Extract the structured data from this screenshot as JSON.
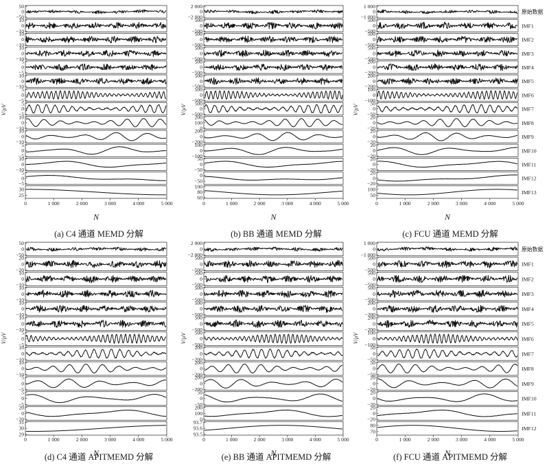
{
  "figure": {
    "x_ticks": [
      "0",
      "1 000",
      "2 000",
      "3 000",
      "4 000",
      "5 000"
    ],
    "x_axis_label": "N",
    "y_axis_label": "V/μV"
  },
  "chart_data": [
    {
      "type": "line",
      "caption": "(a) C4 通道 MEMD 分解",
      "xlabel": "N",
      "ylabel": "V/μV",
      "xlim": [
        0,
        5000
      ],
      "series": [
        {
          "yticks": [
            "50",
            "0",
            "−50"
          ]
        },
        {
          "yticks": [
            "10",
            "0",
            "−10"
          ]
        },
        {
          "yticks": [
            "10",
            "0",
            "−10"
          ]
        },
        {
          "yticks": [
            "10",
            "0",
            "−10"
          ]
        },
        {
          "yticks": [
            "5",
            "0",
            "−5"
          ]
        },
        {
          "yticks": [
            "10",
            "0",
            "−10"
          ]
        },
        {
          "yticks": [
            "5",
            "0",
            "−5"
          ]
        },
        {
          "yticks": [
            "5",
            "0",
            "−5"
          ]
        },
        {
          "yticks": [
            "10",
            "0",
            "−10"
          ]
        },
        {
          "yticks": [
            "10",
            "0",
            "−10"
          ]
        },
        {
          "yticks": [
            "5",
            "0",
            "−5"
          ]
        },
        {
          "yticks": [
            "10",
            "0",
            "−10"
          ]
        },
        {
          "yticks": [
            "5",
            "0",
            "−5"
          ]
        },
        {
          "yticks": [
            "30",
            "25"
          ]
        }
      ]
    },
    {
      "type": "line",
      "caption": "(b) BB 通道 MEMD 分解",
      "xlabel": "N",
      "xlim": [
        0,
        5000
      ],
      "series": [
        {
          "yticks": [
            "2 000",
            "0",
            "−2 000"
          ]
        },
        {
          "yticks": [
            "500",
            "0",
            "−500"
          ]
        },
        {
          "yticks": [
            "500",
            "0",
            "−500"
          ]
        },
        {
          "yticks": [
            "500",
            "0",
            "−500"
          ]
        },
        {
          "yticks": [
            "500",
            "0",
            "−500"
          ]
        },
        {
          "yticks": [
            "500",
            "0",
            "−500"
          ]
        },
        {
          "yticks": [
            "500",
            "0",
            "−500"
          ]
        },
        {
          "yticks": [
            "500",
            "0",
            "−500"
          ]
        },
        {
          "yticks": [
            "200",
            "100",
            "0"
          ]
        },
        {
          "yticks": [
            "200",
            "0",
            "−200"
          ]
        },
        {
          "yticks": [
            "100",
            "0",
            "−100"
          ]
        },
        {
          "yticks": [
            "50",
            "0",
            "−50"
          ]
        },
        {
          "yticks": [
            "0",
            "−50"
          ]
        },
        {
          "yticks": [
            "100",
            "80",
            "60"
          ]
        }
      ]
    },
    {
      "type": "line",
      "caption": "(c) FCU 通道 MEMD 分解",
      "xlabel": "N",
      "xlim": [
        0,
        5000
      ],
      "labels": [
        "原始数据",
        "IMF1",
        "IMF2",
        "IMF3",
        "IMF4",
        "IMF5",
        "IMF6",
        "IMF7",
        "IMF8",
        "IMF9",
        "IMF10",
        "IMF11",
        "IMF12",
        "IMF13"
      ],
      "series": [
        {
          "yticks": [
            "1 000",
            "0",
            "−1 000"
          ]
        },
        {
          "yticks": [
            "500",
            "0",
            "−500"
          ]
        },
        {
          "yticks": [
            "500",
            "0",
            "−500"
          ]
        },
        {
          "yticks": [
            "500",
            "0",
            "−500"
          ]
        },
        {
          "yticks": [
            "200",
            "0",
            "−200"
          ]
        },
        {
          "yticks": [
            "200",
            "0",
            "−200"
          ]
        },
        {
          "yticks": [
            "100",
            "0",
            "−100"
          ]
        },
        {
          "yticks": [
            "50",
            "0",
            "−50"
          ]
        },
        {
          "yticks": [
            "20",
            "0",
            "−20"
          ]
        },
        {
          "yticks": [
            "20",
            "0",
            "−20"
          ]
        },
        {
          "yticks": [
            "20",
            "0",
            "−20"
          ]
        },
        {
          "yticks": [
            "20",
            "0",
            "−20"
          ]
        },
        {
          "yticks": [
            "20",
            "0",
            "−20"
          ]
        },
        {
          "yticks": [
            "100",
            "50"
          ]
        }
      ]
    },
    {
      "type": "line",
      "caption": "(d) C4 通道 APITMEMD 分解",
      "xlabel": "N",
      "ylabel": "V/μV",
      "xlim": [
        0,
        5000
      ],
      "series": [
        {
          "yticks": [
            "50",
            "0",
            "−50"
          ]
        },
        {
          "yticks": [
            "20",
            "0",
            "−20"
          ]
        },
        {
          "yticks": [
            "10",
            "0",
            "−10"
          ]
        },
        {
          "yticks": [
            "10",
            "0",
            "−10"
          ]
        },
        {
          "yticks": [
            "10",
            "0",
            "−10"
          ]
        },
        {
          "yticks": [
            "10",
            "0",
            "−10"
          ]
        },
        {
          "yticks": [
            "5",
            "0",
            "−5"
          ]
        },
        {
          "yticks": [
            "10",
            "0",
            "−10"
          ]
        },
        {
          "yticks": [
            "10",
            "0",
            "−10"
          ]
        },
        {
          "yticks": [
            "5",
            "0",
            "−5"
          ]
        },
        {
          "yticks": [
            "5",
            "0",
            "−5"
          ]
        },
        {
          "yticks": [
            "20",
            "0",
            "−20"
          ]
        },
        {
          "yticks": [
            "31",
            "30",
            "29"
          ]
        }
      ]
    },
    {
      "type": "line",
      "caption": "(e) BB 通道 APITMEMD 分解",
      "xlabel": "N",
      "xlim": [
        0,
        5000
      ],
      "series": [
        {
          "yticks": [
            "2 000",
            "0",
            "−2 000"
          ]
        },
        {
          "yticks": [
            "500",
            "0",
            "−500"
          ]
        },
        {
          "yticks": [
            "500",
            "0",
            "−500"
          ]
        },
        {
          "yticks": [
            "500",
            "0",
            "−500"
          ]
        },
        {
          "yticks": [
            "500",
            "0",
            "−500"
          ]
        },
        {
          "yticks": [
            "500",
            "0",
            "−500"
          ]
        },
        {
          "yticks": [
            "500",
            "0",
            "−500"
          ]
        },
        {
          "yticks": [
            "200",
            "0",
            "−200"
          ]
        },
        {
          "yticks": [
            "200",
            "0",
            "−200"
          ]
        },
        {
          "yticks": [
            "200",
            "0",
            "−200"
          ]
        },
        {
          "yticks": [
            "50",
            "0",
            "−50"
          ]
        },
        {
          "yticks": [
            "200",
            "100",
            "0"
          ]
        },
        {
          "yticks": [
            "93.7",
            "93.6",
            "93.5"
          ]
        }
      ]
    },
    {
      "type": "line",
      "caption": "(f) FCU 通道 APITMEMD 分解",
      "xlabel": "N",
      "xlim": [
        0,
        5000
      ],
      "labels": [
        "原始数据",
        "IMF1",
        "IMF2",
        "IMF3",
        "IMF4",
        "IMF5",
        "IMF6",
        "IMF7",
        "IMF8",
        "IMF9",
        "IMF10",
        "IMF11",
        "IMF12"
      ],
      "series": [
        {
          "yticks": [
            "1 000",
            "0",
            "−1 000"
          ]
        },
        {
          "yticks": [
            "500",
            "0",
            "−500"
          ]
        },
        {
          "yticks": [
            "500",
            "0",
            "−500"
          ]
        },
        {
          "yticks": [
            "500",
            "0",
            "−500"
          ]
        },
        {
          "yticks": [
            "200",
            "0",
            "−200"
          ]
        },
        {
          "yticks": [
            "200",
            "0",
            "−200"
          ]
        },
        {
          "yticks": [
            "100",
            "0",
            "−100"
          ]
        },
        {
          "yticks": [
            "50",
            "0",
            "−50"
          ]
        },
        {
          "yticks": [
            "50",
            "0",
            "−50"
          ]
        },
        {
          "yticks": [
            "20",
            "0",
            "−20"
          ]
        },
        {
          "yticks": [
            "20",
            "0",
            "−20"
          ]
        },
        {
          "yticks": [
            "20",
            "0",
            "−20"
          ]
        },
        {
          "yticks": [
            "80",
            "70"
          ]
        }
      ]
    }
  ]
}
